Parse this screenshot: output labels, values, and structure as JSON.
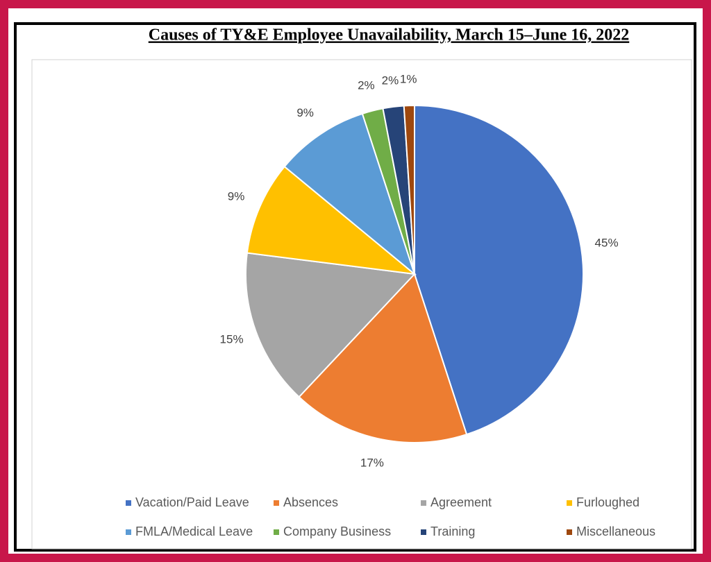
{
  "chart_data": {
    "type": "pie",
    "title": "Causes of TY&E Employee Unavailability, March 15–June 16, 2022",
    "categories": [
      "Vacation/Paid Leave",
      "Absences",
      "Agreement",
      "Furloughed",
      "FMLA/Medical Leave",
      "Company Business",
      "Training",
      "Miscellaneous"
    ],
    "values": [
      45,
      17,
      15,
      9,
      9,
      2,
      2,
      1
    ],
    "value_labels": [
      "45%",
      "17%",
      "15%",
      "9%",
      "9%",
      "2%",
      "2%",
      "1%"
    ],
    "colors": [
      "#4472c4",
      "#ed7d31",
      "#a5a5a5",
      "#ffc000",
      "#5b9bd5",
      "#70ad47",
      "#264478",
      "#9e480e"
    ],
    "legend": "bottom"
  }
}
